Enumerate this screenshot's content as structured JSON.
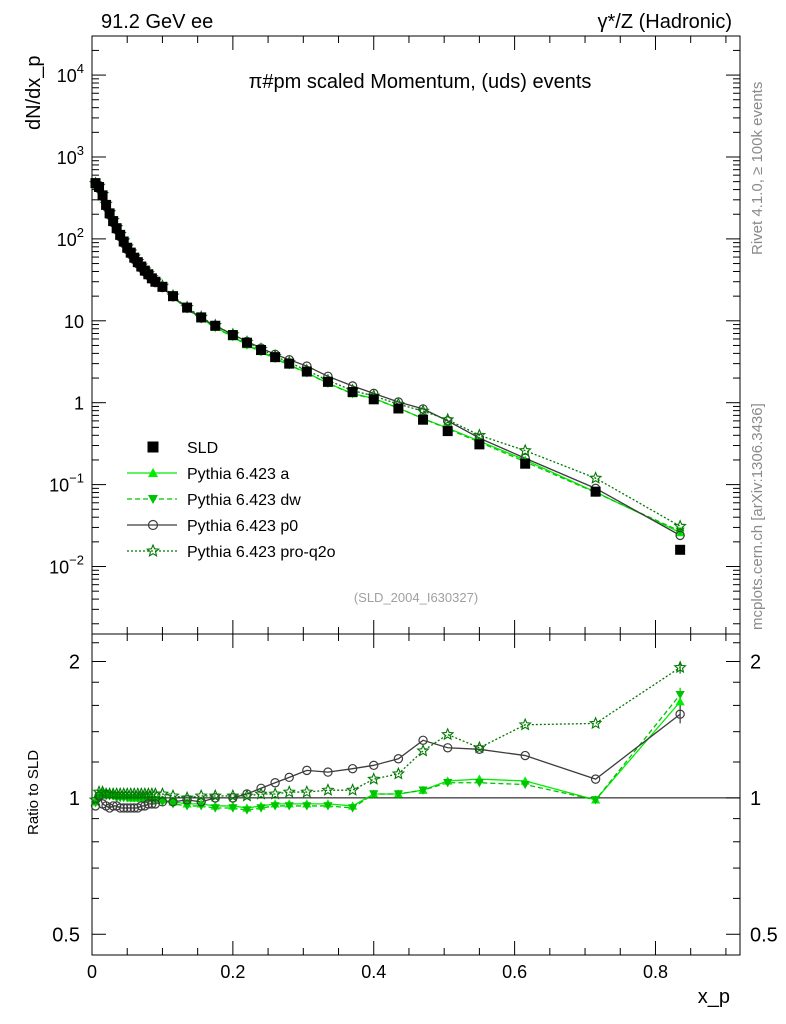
{
  "header": {
    "left": "91.2 GeV ee",
    "right": "γ*/Z (Hadronic)"
  },
  "side_labels": {
    "rivet": "Rivet 4.1.0, ≥ 100k events",
    "mcplots": "mcplots.cern.ch [arXiv:1306.3436]"
  },
  "analysis_tag": "(SLD_2004_I630327)",
  "colors": {
    "sld": "#000000",
    "a": "#00ee00",
    "dw": "#00c400",
    "p0": "#3c3c3c",
    "pro": "#007a00"
  },
  "chart_data": [
    {
      "type": "line",
      "panel": "main",
      "title": "π#pm scaled Momentum, (uds) events",
      "xlabel": "x_p",
      "ylabel": "dN/dx_p",
      "yscale": "log",
      "xlim": [
        0,
        0.92
      ],
      "ylim": [
        0.0015,
        30000
      ],
      "yticks": [
        {
          "v": 10000,
          "label": "10^4"
        },
        {
          "v": 1000,
          "label": "10^3"
        },
        {
          "v": 100,
          "label": "10^2"
        },
        {
          "v": 10,
          "label": "10"
        },
        {
          "v": 1,
          "label": "1"
        },
        {
          "v": 0.1,
          "label": "10^-1"
        },
        {
          "v": 0.01,
          "label": "10^-2"
        }
      ],
      "x": [
        0.005,
        0.01,
        0.015,
        0.02,
        0.025,
        0.03,
        0.035,
        0.04,
        0.045,
        0.05,
        0.055,
        0.06,
        0.065,
        0.07,
        0.075,
        0.08,
        0.085,
        0.09,
        0.1,
        0.115,
        0.135,
        0.155,
        0.175,
        0.2,
        0.22,
        0.24,
        0.26,
        0.28,
        0.305,
        0.335,
        0.37,
        0.4,
        0.435,
        0.47,
        0.505,
        0.55,
        0.615,
        0.715,
        0.835
      ],
      "legend": [
        "SLD",
        "Pythia 6.423 a",
        "Pythia 6.423 dw",
        "Pythia 6.423 p0",
        "Pythia 6.423 pro-q2o"
      ],
      "series": [
        {
          "name": "SLD",
          "key": "sld",
          "marker": "square",
          "line": "none",
          "values": [
            480,
            430,
            340,
            260,
            205,
            165,
            135,
            112,
            93,
            78,
            68,
            59,
            52,
            46,
            41,
            37,
            33,
            30,
            26,
            20,
            14.5,
            11,
            8.7,
            6.7,
            5.4,
            4.4,
            3.6,
            3.0,
            2.4,
            1.8,
            1.35,
            1.1,
            0.85,
            0.62,
            0.45,
            0.31,
            0.18,
            0.082,
            0.016
          ]
        },
        {
          "name": "Pythia 6.423 a",
          "key": "a",
          "marker": "tri-up",
          "line": "solid",
          "values": [
            470,
            440,
            350,
            265,
            210,
            168,
            137,
            113,
            94,
            79,
            68.5,
            59.5,
            52.5,
            46.2,
            41.2,
            37,
            33.2,
            30,
            25.8,
            19.6,
            14.1,
            10.6,
            8.35,
            6.4,
            5.1,
            4.22,
            3.5,
            2.9,
            2.32,
            1.73,
            1.29,
            1.13,
            0.86,
            0.64,
            0.49,
            0.34,
            0.2,
            0.081,
            0.026
          ]
        },
        {
          "name": "Pythia 6.423 dw",
          "key": "dw",
          "marker": "tri-down",
          "line": "dashed",
          "values": [
            468,
            436,
            345,
            262,
            207,
            167,
            136,
            112,
            93,
            78.5,
            68,
            59,
            52,
            45.8,
            40.8,
            36.8,
            33,
            29.8,
            25.6,
            19.4,
            13.9,
            10.5,
            8.25,
            6.35,
            5.05,
            4.15,
            3.45,
            2.88,
            2.3,
            1.72,
            1.28,
            1.12,
            0.86,
            0.64,
            0.48,
            0.33,
            0.19,
            0.08,
            0.027
          ]
        },
        {
          "name": "Pythia 6.423 p0",
          "key": "p0",
          "marker": "circle",
          "line": "solid",
          "values": [
            460,
            435,
            330,
            250,
            195,
            158,
            129,
            106,
            88,
            74,
            64.5,
            56,
            49.5,
            44,
            39.5,
            35.8,
            32.2,
            29.2,
            25.5,
            19.6,
            14.3,
            10.8,
            8.7,
            6.8,
            5.6,
            4.65,
            3.9,
            3.35,
            2.8,
            2.1,
            1.6,
            1.3,
            1.02,
            0.84,
            0.6,
            0.37,
            0.21,
            0.09,
            0.024
          ]
        },
        {
          "name": "Pythia 6.423 pro-q2o",
          "key": "pro",
          "marker": "star",
          "line": "dotted",
          "values": [
            475,
            442,
            350,
            266,
            210,
            169,
            138,
            114,
            95,
            80,
            69.5,
            60.5,
            53.2,
            47,
            42,
            37.8,
            34,
            30.8,
            26.6,
            20.2,
            14.6,
            11.1,
            8.8,
            6.8,
            5.5,
            4.5,
            3.7,
            3.1,
            2.48,
            1.87,
            1.41,
            1.21,
            0.96,
            0.79,
            0.62,
            0.4,
            0.26,
            0.12,
            0.031
          ]
        }
      ]
    },
    {
      "type": "line",
      "panel": "ratio",
      "ylabel": "Ratio to SLD",
      "xlabel": "x_p",
      "ylim": [
        0.45,
        2.3
      ],
      "yticks": [
        {
          "v": 0.5,
          "label": "0.5"
        },
        {
          "v": 1,
          "label": "1"
        },
        {
          "v": 2,
          "label": "2"
        }
      ],
      "xticks": [
        {
          "v": 0,
          "label": "0"
        },
        {
          "v": 0.2,
          "label": "0.2"
        },
        {
          "v": 0.4,
          "label": "0.4"
        },
        {
          "v": 0.6,
          "label": "0.6"
        },
        {
          "v": 0.8,
          "label": "0.8"
        }
      ],
      "reference_line": 1,
      "x": [
        0.005,
        0.01,
        0.015,
        0.02,
        0.025,
        0.03,
        0.035,
        0.04,
        0.045,
        0.05,
        0.055,
        0.06,
        0.065,
        0.07,
        0.075,
        0.08,
        0.085,
        0.09,
        0.1,
        0.115,
        0.135,
        0.155,
        0.175,
        0.2,
        0.22,
        0.24,
        0.26,
        0.28,
        0.305,
        0.335,
        0.37,
        0.4,
        0.435,
        0.47,
        0.505,
        0.55,
        0.615,
        0.715,
        0.835
      ],
      "series": [
        {
          "key": "a",
          "marker": "tri-up",
          "line": "solid",
          "values": [
            0.98,
            1.02,
            1.03,
            1.02,
            1.02,
            1.02,
            1.01,
            1.01,
            1.01,
            1.01,
            1.0,
            1.0,
            1.0,
            1.0,
            1.0,
            1.0,
            1.0,
            0.99,
            0.99,
            0.98,
            0.97,
            0.97,
            0.96,
            0.96,
            0.95,
            0.96,
            0.97,
            0.97,
            0.97,
            0.97,
            0.96,
            1.02,
            1.02,
            1.04,
            1.09,
            1.1,
            1.09,
            0.99,
            1.63
          ]
        },
        {
          "key": "dw",
          "marker": "tri-down",
          "line": "dashed",
          "values": [
            0.975,
            1.01,
            1.02,
            1.01,
            1.01,
            1.01,
            1.0,
            1.0,
            1.0,
            1.0,
            1.0,
            1.0,
            1.0,
            1.0,
            0.99,
            0.99,
            0.99,
            0.99,
            0.98,
            0.97,
            0.96,
            0.96,
            0.95,
            0.95,
            0.94,
            0.95,
            0.96,
            0.96,
            0.96,
            0.96,
            0.95,
            1.02,
            1.02,
            1.04,
            1.08,
            1.08,
            1.07,
            0.99,
            1.69
          ]
        },
        {
          "key": "p0",
          "marker": "circle",
          "line": "solid",
          "values": [
            0.96,
            1.01,
            0.97,
            0.96,
            0.95,
            0.96,
            0.96,
            0.95,
            0.95,
            0.95,
            0.95,
            0.95,
            0.95,
            0.96,
            0.96,
            0.97,
            0.97,
            0.97,
            0.98,
            0.98,
            0.99,
            0.98,
            1.0,
            1.0,
            1.02,
            1.05,
            1.08,
            1.11,
            1.15,
            1.14,
            1.16,
            1.18,
            1.22,
            1.34,
            1.29,
            1.28,
            1.24,
            1.1,
            1.53
          ]
        },
        {
          "key": "pro",
          "marker": "star",
          "line": "dotted",
          "values": [
            0.99,
            1.03,
            1.03,
            1.02,
            1.02,
            1.02,
            1.02,
            1.02,
            1.02,
            1.02,
            1.02,
            1.02,
            1.02,
            1.02,
            1.02,
            1.02,
            1.02,
            1.02,
            1.02,
            1.01,
            1.0,
            1.01,
            1.01,
            1.01,
            1.01,
            1.02,
            1.02,
            1.03,
            1.03,
            1.04,
            1.04,
            1.1,
            1.13,
            1.27,
            1.38,
            1.29,
            1.45,
            1.46,
            1.94
          ]
        }
      ]
    }
  ]
}
